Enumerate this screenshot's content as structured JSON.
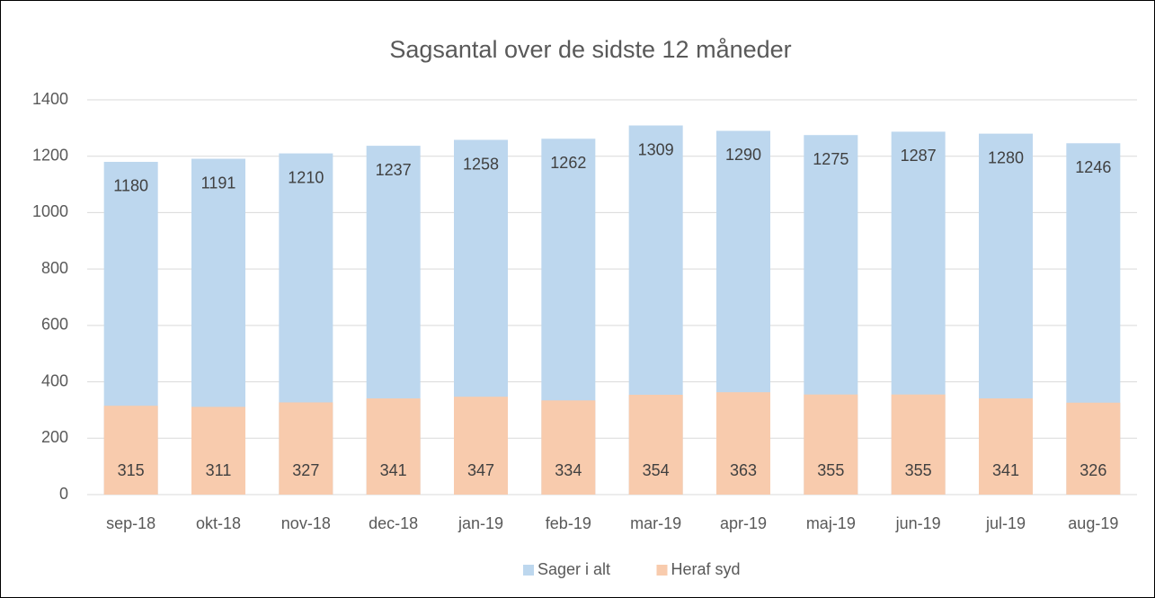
{
  "chart_data": {
    "type": "bar",
    "title": "Sagsantal over de sidste 12 måneder",
    "categories": [
      "sep-18",
      "okt-18",
      "nov-18",
      "dec-18",
      "jan-19",
      "feb-19",
      "mar-19",
      "apr-19",
      "maj-19",
      "jun-19",
      "jul-19",
      "aug-19"
    ],
    "series": [
      {
        "name": "Sager i alt",
        "color": "#bdd7ee",
        "values": [
          1180,
          1191,
          1210,
          1237,
          1258,
          1262,
          1309,
          1290,
          1275,
          1287,
          1280,
          1246
        ]
      },
      {
        "name": "Heraf syd",
        "color": "#f8cbad",
        "values": [
          315,
          311,
          327,
          341,
          347,
          334,
          354,
          363,
          355,
          355,
          341,
          326
        ]
      }
    ],
    "ylim": [
      0,
      1400
    ],
    "yticks": [
      0,
      200,
      400,
      600,
      800,
      1000,
      1200,
      1400
    ],
    "grid": true,
    "legend": "bottom"
  }
}
